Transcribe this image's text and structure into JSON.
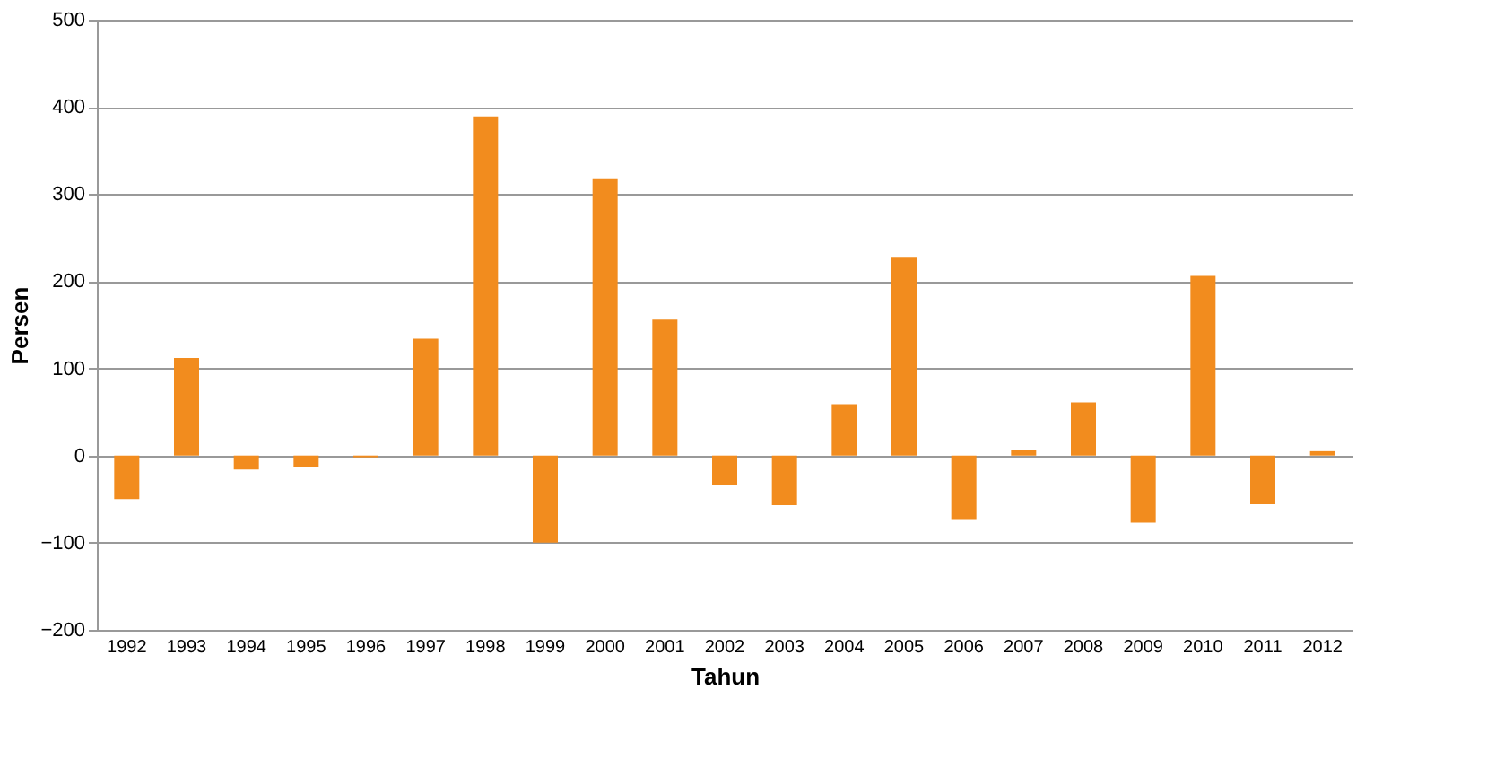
{
  "chart_data": {
    "type": "bar",
    "xlabel": "Tahun",
    "ylabel": "Persen",
    "categories": [
      "1992",
      "1993",
      "1994",
      "1995",
      "1996",
      "1997",
      "1998",
      "1999",
      "2000",
      "2001",
      "2002",
      "2003",
      "2004",
      "2005",
      "2006",
      "2007",
      "2008",
      "2009",
      "2010",
      "2011",
      "2012"
    ],
    "values": [
      -50,
      112,
      -16,
      -13,
      -2,
      134,
      389,
      -100,
      318,
      156,
      -34,
      -57,
      59,
      228,
      -74,
      7,
      61,
      -77,
      206,
      -56,
      5
    ],
    "color": "#f28c1e",
    "ylim": [
      -200,
      500
    ],
    "yticks": [
      -200,
      -100,
      0,
      100,
      200,
      300,
      400,
      500
    ],
    "grid": "y"
  }
}
